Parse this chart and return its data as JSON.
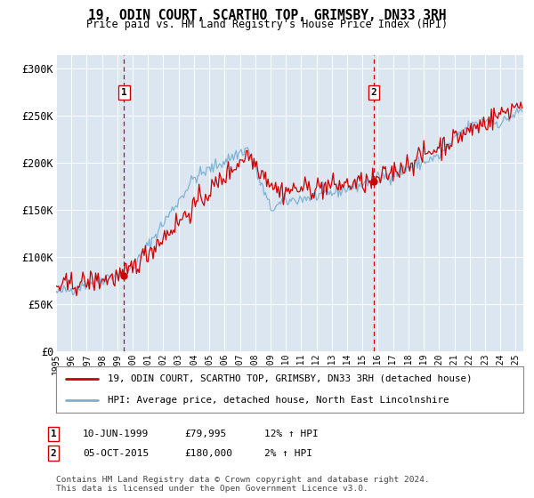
{
  "title": "19, ODIN COURT, SCARTHO TOP, GRIMSBY, DN33 3RH",
  "subtitle": "Price paid vs. HM Land Registry's House Price Index (HPI)",
  "ylabel_ticks": [
    "£0",
    "£50K",
    "£100K",
    "£150K",
    "£200K",
    "£250K",
    "£300K"
  ],
  "ytick_vals": [
    0,
    50000,
    100000,
    150000,
    200000,
    250000,
    300000
  ],
  "ylim": [
    0,
    315000
  ],
  "xlim_start": 1995.0,
  "xlim_end": 2025.5,
  "bg_color": "#dce6f1",
  "marker1_date": 1999.44,
  "marker1_price": 79995,
  "marker1_label": "1",
  "marker2_date": 2015.75,
  "marker2_price": 180000,
  "marker2_label": "2",
  "legend_line1": "19, ODIN COURT, SCARTHO TOP, GRIMSBY, DN33 3RH (detached house)",
  "legend_line2": "HPI: Average price, detached house, North East Lincolnshire",
  "footer": "Contains HM Land Registry data © Crown copyright and database right 2024.\nThis data is licensed under the Open Government Licence v3.0.",
  "house_color": "#cc0000",
  "hpi_color": "#7ab0d4",
  "vline_color": "#cc0000",
  "x_tick_years": [
    1995,
    1996,
    1997,
    1998,
    1999,
    2000,
    2001,
    2002,
    2003,
    2004,
    2005,
    2006,
    2007,
    2008,
    2009,
    2010,
    2011,
    2012,
    2013,
    2014,
    2015,
    2016,
    2017,
    2018,
    2019,
    2020,
    2021,
    2022,
    2023,
    2024,
    2025
  ],
  "row1_date": "10-JUN-1999",
  "row1_price": "£79,995",
  "row1_hpi": "12% ↑ HPI",
  "row2_date": "05-OCT-2015",
  "row2_price": "£180,000",
  "row2_hpi": "2% ↑ HPI"
}
